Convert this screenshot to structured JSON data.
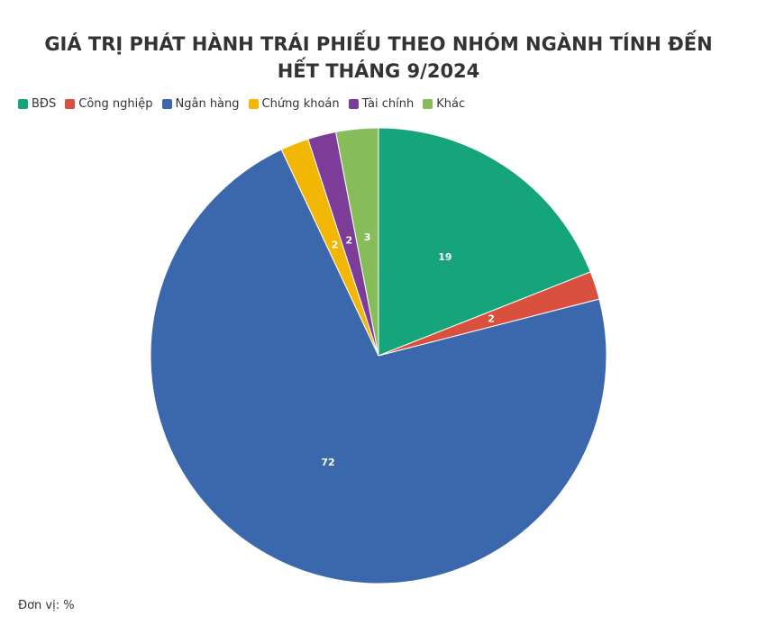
{
  "chart_data": {
    "type": "pie",
    "title": "GIÁ TRỊ PHÁT HÀNH TRÁI PHIẾU THEO NHÓM NGÀNH TÍNH ĐẾN HẾT THÁNG 9/2024",
    "categories": [
      "BĐS",
      "Công nghiệp",
      "Ngân hàng",
      "Chứng khoán",
      "Tài chính",
      "Khác"
    ],
    "values": [
      19,
      2,
      72,
      2,
      2,
      3
    ],
    "colors": [
      "#16a57a",
      "#d9503f",
      "#3b68ad",
      "#f2b705",
      "#7d3c98",
      "#86bd5a"
    ],
    "note": "Đơn vị: %"
  }
}
